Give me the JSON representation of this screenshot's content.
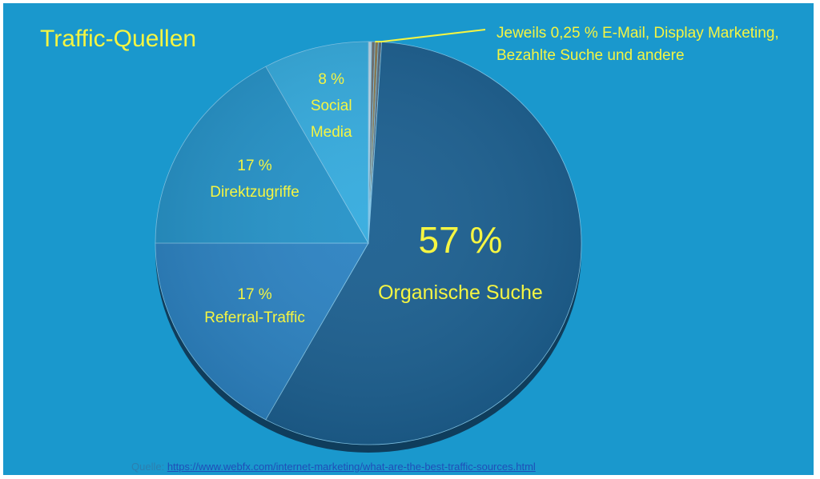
{
  "chart_data": {
    "type": "pie",
    "title": "Traffic-Quellen",
    "slices": [
      {
        "label": "Organische Suche",
        "value": 57,
        "value_label": "57 %",
        "color": "#1b5f90"
      },
      {
        "label": "Referral-Traffic",
        "value": 17,
        "value_label": "17 %",
        "color": "#2b82c2"
      },
      {
        "label": "Direktzugriffe",
        "value": 17,
        "value_label": "17 %",
        "color": "#2492c8"
      },
      {
        "label": "Social Media",
        "value": 8,
        "value_label": "8 %",
        "color": "#34abde"
      },
      {
        "label": "E-Mail",
        "value": 0.25,
        "value_label": "",
        "color": "#bcd6e6"
      },
      {
        "label": "Display Marketing",
        "value": 0.25,
        "value_label": "",
        "color": "#6f6f6f"
      },
      {
        "label": "Bezahlte Suche",
        "value": 0.25,
        "value_label": "",
        "color": "#8a7a52"
      },
      {
        "label": "andere",
        "value": 0.25,
        "value_label": "",
        "color": "#5a6b7a"
      }
    ],
    "annotation": "Jeweils 0,25 % E-Mail, Display Marketing, Bezahlte Suche und andere",
    "text_color": "#f5f542"
  },
  "source": {
    "prefix": "Quelle: ",
    "link_text": "https://www.webfx.com/internet-marketing/what-are-the-best-traffic-sources.html"
  }
}
